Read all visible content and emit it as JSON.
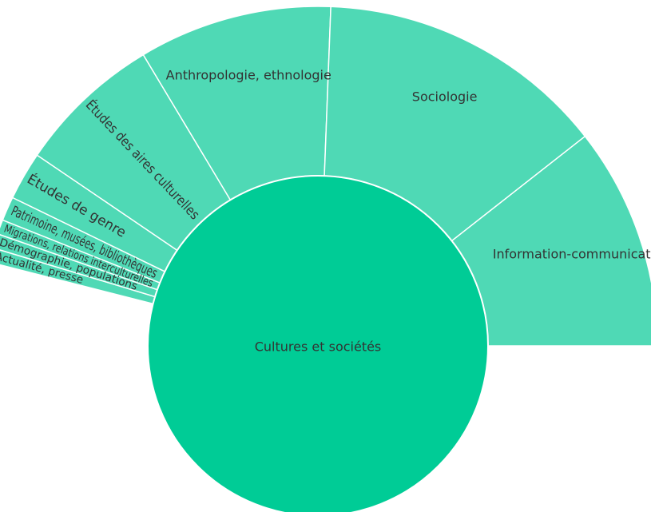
{
  "chart_data": {
    "type": "sunburst",
    "root": {
      "label": "Cultures et sociétés"
    },
    "children": [
      {
        "label": "Actualité, presse",
        "value": 1.5
      },
      {
        "label": "Démographie, populations",
        "value": 1.5
      },
      {
        "label": "Migrations, relations interculturelles",
        "value": 1.5
      },
      {
        "label": "Patrimoine, musées, bibliothèques",
        "value": 2.5
      },
      {
        "label": "Études de genre",
        "value": 5
      },
      {
        "label": "Études des aires culturelles",
        "value": 15
      },
      {
        "label": "Anthropologie, ethnologie",
        "value": 20
      },
      {
        "label": "Sociologie",
        "value": 30
      },
      {
        "label": "Information-communication",
        "value": 23
      }
    ],
    "colors": {
      "inner": "#00CC96",
      "outer": "#4FD9B5",
      "separator": "#ffffff",
      "text": "#333333"
    }
  }
}
